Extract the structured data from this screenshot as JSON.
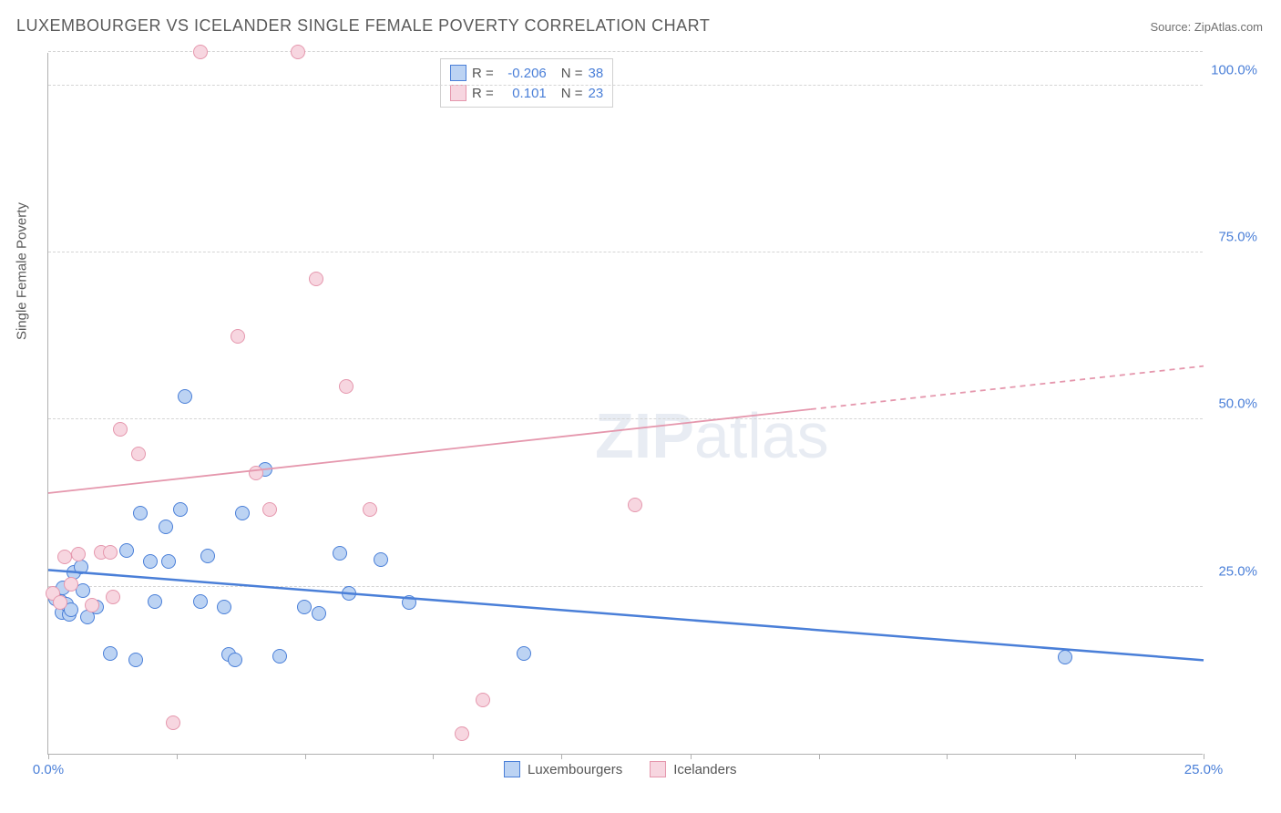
{
  "title": "LUXEMBOURGER VS ICELANDER SINGLE FEMALE POVERTY CORRELATION CHART",
  "source_label": "Source: ZipAtlas.com",
  "y_axis_label": "Single Female Poverty",
  "watermark": {
    "bold": "ZIP",
    "rest": "atlas"
  },
  "chart": {
    "type": "scatter",
    "xlim": [
      0,
      25
    ],
    "ylim": [
      0,
      105
    ],
    "x_ticks": [
      0,
      2.78,
      5.56,
      8.33,
      11.11,
      13.89,
      16.67,
      19.44,
      22.22,
      25
    ],
    "x_tick_labels": {
      "0": "0.0%",
      "25": "25.0%"
    },
    "y_gridlines": [
      25,
      50,
      75,
      100,
      105
    ],
    "y_tick_labels": {
      "25": "25.0%",
      "50": "50.0%",
      "75": "75.0%",
      "100": "100.0%"
    },
    "background_color": "#ffffff",
    "grid_color": "#d5d5d5",
    "axis_color": "#b0b0b0",
    "marker_radius": 8,
    "marker_stroke_width": 1.5,
    "marker_fill_opacity": 0.25,
    "series": [
      {
        "name": "Luxembourgers",
        "color_stroke": "#4a7fd8",
        "color_fill": "#bcd3f3",
        "R": "-0.206",
        "N": "38",
        "trend": {
          "y_at_xmin": 27.5,
          "y_at_xmax": 14.0,
          "dash_from_x": null,
          "line_width": 2.5
        },
        "points": [
          [
            0.15,
            23.2
          ],
          [
            0.28,
            22.8
          ],
          [
            0.3,
            21.2
          ],
          [
            0.32,
            24.8
          ],
          [
            0.4,
            22.4
          ],
          [
            0.45,
            20.8
          ],
          [
            0.55,
            27.2
          ],
          [
            0.5,
            21.6
          ],
          [
            0.7,
            28.0
          ],
          [
            0.75,
            24.4
          ],
          [
            0.85,
            20.4
          ],
          [
            1.05,
            22.0
          ],
          [
            1.35,
            15.0
          ],
          [
            1.7,
            30.4
          ],
          [
            1.9,
            14.0
          ],
          [
            2.0,
            36.0
          ],
          [
            2.2,
            28.8
          ],
          [
            2.3,
            22.8
          ],
          [
            2.55,
            34.0
          ],
          [
            2.6,
            28.8
          ],
          [
            2.85,
            36.5
          ],
          [
            2.95,
            53.5
          ],
          [
            3.3,
            22.8
          ],
          [
            3.45,
            29.6
          ],
          [
            3.8,
            22.0
          ],
          [
            3.9,
            14.8
          ],
          [
            4.05,
            14.0
          ],
          [
            4.2,
            36.0
          ],
          [
            4.7,
            42.5
          ],
          [
            5.0,
            14.6
          ],
          [
            5.55,
            22.0
          ],
          [
            5.85,
            21.0
          ],
          [
            6.3,
            30.0
          ],
          [
            6.5,
            24.0
          ],
          [
            7.2,
            29.0
          ],
          [
            7.8,
            22.6
          ],
          [
            10.3,
            15.0
          ],
          [
            22.0,
            14.5
          ]
        ]
      },
      {
        "name": "Icelanders",
        "color_stroke": "#e597ad",
        "color_fill": "#f7d6e0",
        "R": "0.101",
        "N": "23",
        "trend": {
          "y_at_xmin": 39.0,
          "y_at_xmax": 58.0,
          "dash_from_x": 16.5,
          "line_width": 1.8
        },
        "points": [
          [
            0.1,
            24.0
          ],
          [
            0.25,
            22.6
          ],
          [
            0.35,
            29.5
          ],
          [
            0.5,
            25.4
          ],
          [
            0.65,
            29.8
          ],
          [
            0.95,
            22.2
          ],
          [
            1.15,
            30.2
          ],
          [
            1.4,
            23.4
          ],
          [
            1.35,
            30.2
          ],
          [
            1.55,
            48.5
          ],
          [
            1.95,
            44.8
          ],
          [
            2.7,
            4.6
          ],
          [
            3.3,
            105.0
          ],
          [
            4.1,
            62.5
          ],
          [
            4.5,
            42.0
          ],
          [
            4.8,
            36.5
          ],
          [
            5.4,
            105.0
          ],
          [
            5.8,
            71.0
          ],
          [
            6.45,
            55.0
          ],
          [
            6.95,
            36.5
          ],
          [
            8.95,
            3.0
          ],
          [
            9.4,
            8.0
          ],
          [
            12.7,
            37.2
          ]
        ]
      }
    ]
  },
  "colors": {
    "title_text": "#5a5a5a",
    "source_text": "#707070",
    "tick_label": "#4a7fd8",
    "legend_text": "#555555"
  }
}
